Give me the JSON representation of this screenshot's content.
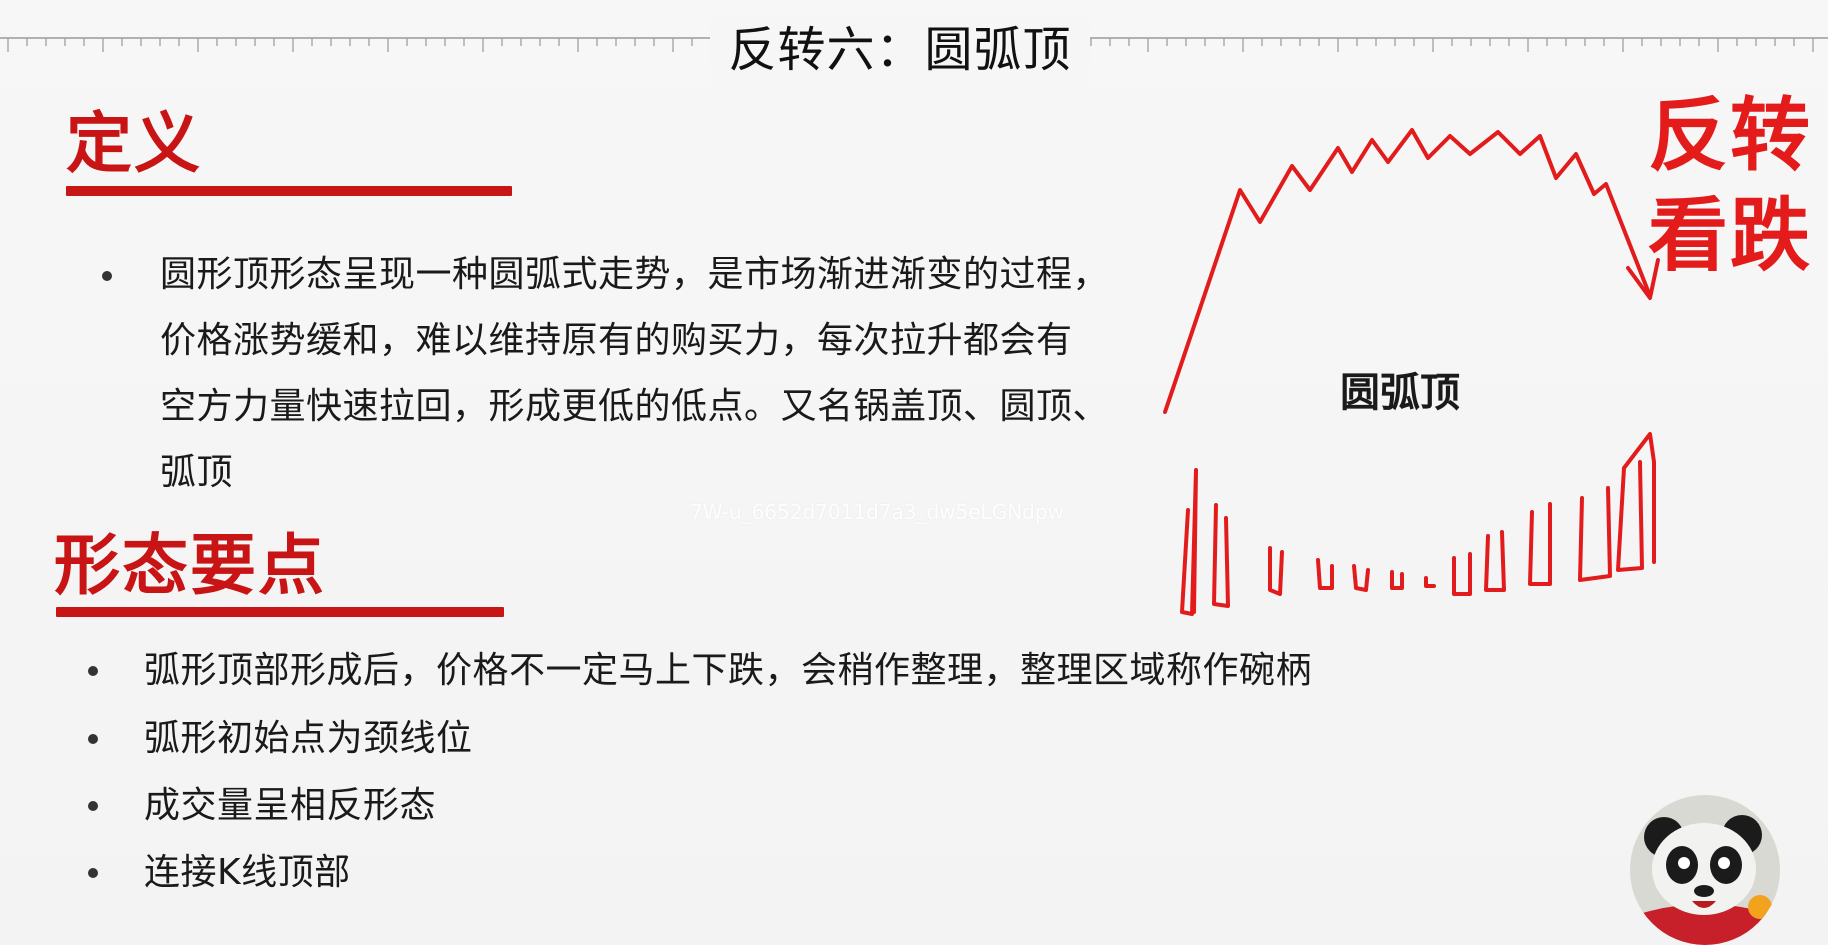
{
  "title": "反转六：圆弧顶",
  "definition": {
    "heading": "定义",
    "text_lines": [
      "圆形顶形态呈现一种圆弧式走势，是市场渐进渐变的过程，",
      "价格涨势缓和，难以维持原有的购买力，每次拉升都会有",
      "空方力量快速拉回，形成更低的低点。又名锅盖顶、圆顶、",
      "弧顶"
    ]
  },
  "key_points": {
    "heading": "形态要点",
    "items": [
      "弧形顶部形成后，价格不一定马上下跌，会稍作整理，整理区域称作碗柄",
      "弧形初始点为颈线位",
      "成交量呈相反形态",
      "连接K线顶部"
    ]
  },
  "diagram": {
    "label": "圆弧顶",
    "annotation_line1": "反转",
    "annotation_line2": "看跌",
    "stroke_color": "#e21c1c"
  },
  "watermark": "7W-u_6652d7011d7a3_dw5eLGNdpw",
  "colors": {
    "heading_red": "#c81414",
    "annotation_red": "#e41b1b",
    "text": "#1a1a1a"
  }
}
